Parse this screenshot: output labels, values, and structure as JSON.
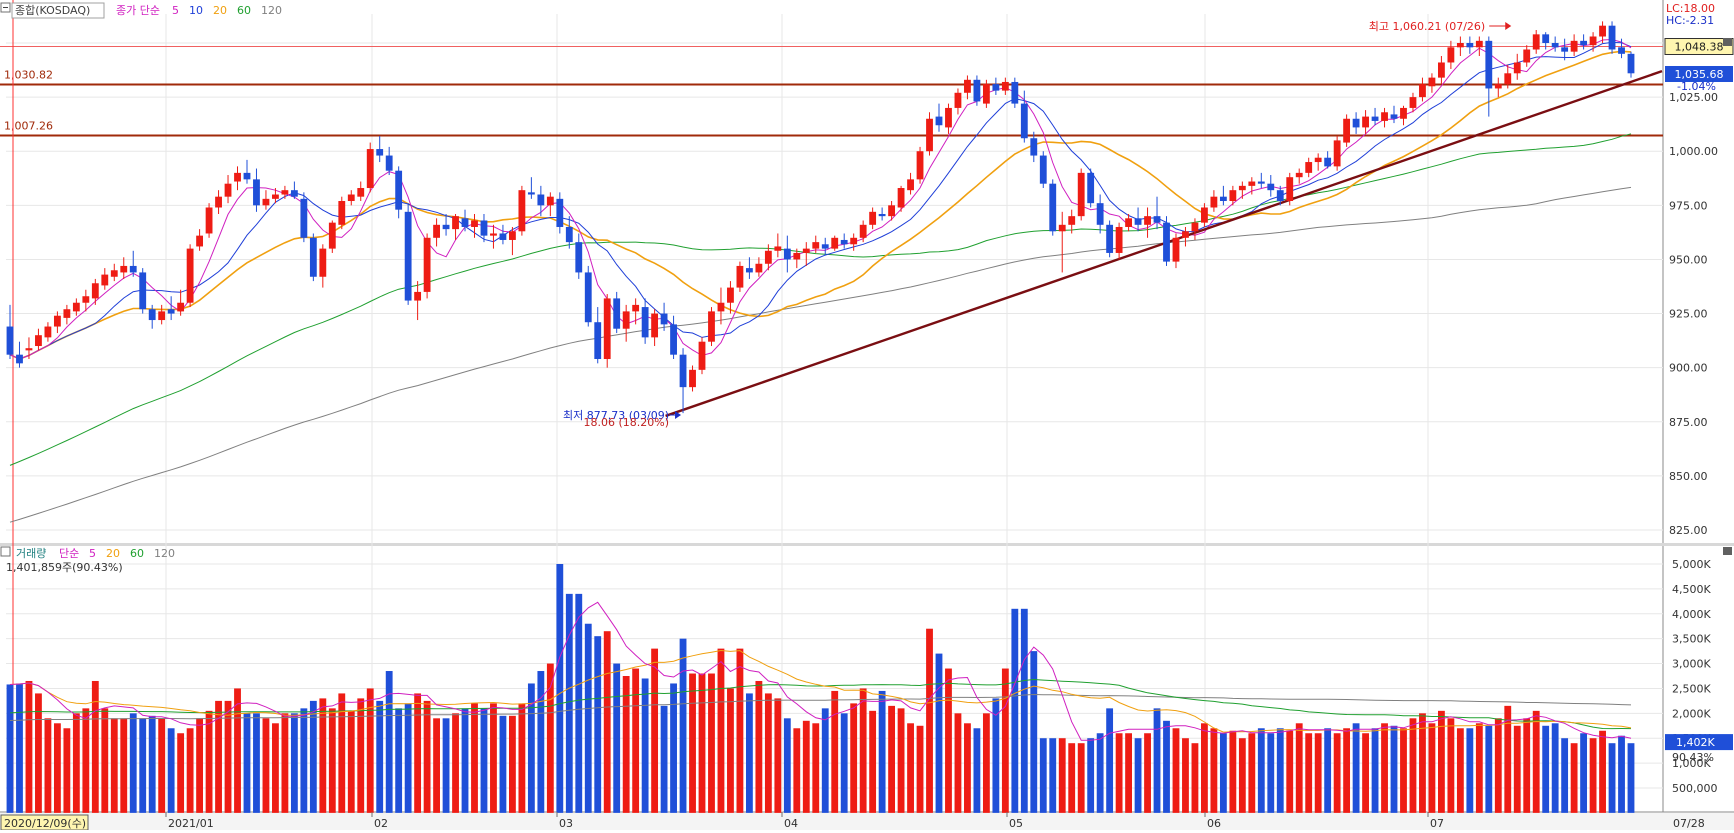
{
  "header": {
    "symbol": "종합(KOSDAQ)",
    "ma_label": "종가 단순",
    "ma_periods": [
      "5",
      "10",
      "20",
      "60",
      "120"
    ],
    "ma_colors": [
      "#d020c0",
      "#1f3fd8",
      "#f0a010",
      "#20a030",
      "#808080"
    ]
  },
  "corner": {
    "lc": "LC:18.00",
    "hc": "HC:-2.31"
  },
  "price_axis": {
    "ticks": [
      "1,050.00",
      "1,025.00",
      "1,000.00",
      "975.00",
      "950.00",
      "925.00",
      "900.00",
      "875.00",
      "850.00",
      "825.00"
    ],
    "current_high_box": "1,048.38",
    "current_price_box": "1,035.68",
    "change_pct": "-1.04%"
  },
  "levels": [
    {
      "label": "1,030.82",
      "value": 1030.82
    },
    {
      "label": "1,007.26",
      "value": 1007.26
    }
  ],
  "annotations": {
    "high": "최고 1,060.21 (07/26)",
    "low": "최저 877.73 (03/09)",
    "low_sub": "18.06 (18.20%)"
  },
  "volume": {
    "title": "거래량",
    "ma_label": "단순",
    "ma_periods": [
      "5",
      "20",
      "60",
      "120"
    ],
    "ma_colors": [
      "#d020c0",
      "#f0a010",
      "#20a030",
      "#808080"
    ],
    "current": "1,401,859주(90.43%)",
    "axis_ticks": [
      "5,000K",
      "4,500K",
      "4,000K",
      "3,500K",
      "3,000K",
      "2,500K",
      "2,000K",
      "1,500K",
      "1,000K",
      "500,000"
    ],
    "current_box": "1,402K",
    "current_pct_box": "90.43%"
  },
  "x_axis": {
    "start_box": "2020/12/09(수)",
    "labels": [
      {
        "text": "2021/01",
        "x": 166
      },
      {
        "text": "02",
        "x": 372
      },
      {
        "text": "03",
        "x": 557
      },
      {
        "text": "04",
        "x": 782
      },
      {
        "text": "05",
        "x": 1007
      },
      {
        "text": "06",
        "x": 1205
      },
      {
        "text": "07",
        "x": 1428
      }
    ],
    "end_box": "07/28"
  },
  "chart_data": {
    "type": "candlestick",
    "period": "2020/12/09 - 2021/07/28",
    "ylim": [
      820,
      1060
    ],
    "volume_ylim": [
      0,
      5200
    ],
    "volume_unit": "K shares",
    "ma_periods": [
      5,
      10,
      20,
      60,
      120
    ],
    "candles": [
      [
        919,
        929,
        904,
        906,
        2580
      ],
      [
        906,
        912,
        900,
        902,
        2600
      ],
      [
        908,
        914,
        904,
        909,
        2650
      ],
      [
        910,
        918,
        908,
        915,
        2400
      ],
      [
        914,
        921,
        912,
        919,
        1900
      ],
      [
        919,
        926,
        916,
        924,
        1800
      ],
      [
        923,
        929,
        920,
        927,
        1700
      ],
      [
        926,
        932,
        924,
        930,
        2000
      ],
      [
        930,
        936,
        926,
        933,
        2100
      ],
      [
        932,
        941,
        929,
        939,
        2650
      ],
      [
        938,
        946,
        936,
        943,
        2100
      ],
      [
        942,
        948,
        940,
        945,
        1900
      ],
      [
        944,
        951,
        941,
        947,
        1900
      ],
      [
        947,
        954,
        942,
        944,
        2000
      ],
      [
        944,
        946,
        925,
        927,
        1900
      ],
      [
        927,
        929,
        918,
        922,
        1950
      ],
      [
        922,
        929,
        920,
        926,
        1900
      ],
      [
        927,
        933,
        922,
        925,
        1700
      ],
      [
        926,
        936,
        924,
        930,
        1600
      ],
      [
        930,
        957,
        928,
        955,
        1700
      ],
      [
        956,
        964,
        954,
        961,
        1900
      ],
      [
        962,
        976,
        960,
        974,
        2050
      ],
      [
        974,
        982,
        971,
        979,
        2250
      ],
      [
        979,
        989,
        976,
        985,
        2250
      ],
      [
        986,
        993,
        982,
        990,
        2500
      ],
      [
        990,
        996,
        985,
        987,
        2000
      ],
      [
        987,
        992,
        972,
        975,
        2000
      ],
      [
        975,
        982,
        973,
        978,
        1900
      ],
      [
        978,
        983,
        976,
        980,
        1800
      ],
      [
        980,
        984,
        978,
        982,
        2000
      ],
      [
        982,
        986,
        978,
        979,
        2000
      ],
      [
        978,
        981,
        958,
        960,
        2100
      ],
      [
        960,
        962,
        940,
        942,
        2250
      ],
      [
        942,
        957,
        937,
        955,
        2300
      ],
      [
        955,
        968,
        953,
        967,
        2100
      ],
      [
        966,
        979,
        964,
        977,
        2400
      ],
      [
        977,
        982,
        975,
        980,
        2050
      ],
      [
        979,
        986,
        977,
        983,
        2300
      ],
      [
        983,
        1004,
        981,
        1001,
        2500
      ],
      [
        1001,
        1007,
        995,
        998,
        2250
      ],
      [
        998,
        1002,
        989,
        991,
        2850
      ],
      [
        991,
        993,
        969,
        973,
        2100
      ],
      [
        972,
        976,
        929,
        931,
        2200
      ],
      [
        931,
        940,
        922,
        935,
        2400
      ],
      [
        935,
        962,
        932,
        960,
        2250
      ],
      [
        960,
        969,
        956,
        966,
        1900
      ],
      [
        966,
        971,
        961,
        964,
        1900
      ],
      [
        964,
        971,
        959,
        970,
        2000
      ],
      [
        969,
        973,
        963,
        965,
        2100
      ],
      [
        965,
        971,
        960,
        968,
        2200
      ],
      [
        968,
        971,
        958,
        961,
        2100
      ],
      [
        961,
        966,
        955,
        962,
        2200
      ],
      [
        962,
        966,
        957,
        959,
        1950
      ],
      [
        959,
        965,
        952,
        963,
        1950
      ],
      [
        963,
        984,
        961,
        982,
        2200
      ],
      [
        981,
        988,
        978,
        980,
        2600
      ],
      [
        980,
        984,
        970,
        975,
        2850
      ],
      [
        975,
        981,
        970,
        979,
        3000
      ],
      [
        978,
        981,
        962,
        965,
        5000
      ],
      [
        965,
        970,
        955,
        958,
        4400
      ],
      [
        958,
        962,
        941,
        944,
        4400
      ],
      [
        944,
        947,
        919,
        921,
        3800
      ],
      [
        921,
        928,
        902,
        904,
        3550
      ],
      [
        904,
        934,
        900,
        932,
        3650
      ],
      [
        932,
        935,
        916,
        918,
        3000
      ],
      [
        918,
        929,
        912,
        926,
        2750
      ],
      [
        926,
        932,
        920,
        929,
        2900
      ],
      [
        928,
        932,
        911,
        914,
        2700
      ],
      [
        914,
        927,
        910,
        925,
        3300
      ],
      [
        925,
        930,
        917,
        920,
        2150
      ],
      [
        920,
        924,
        904,
        906,
        2600
      ],
      [
        906,
        909,
        879,
        891,
        3500
      ],
      [
        891,
        901,
        889,
        899,
        2800
      ],
      [
        899,
        914,
        897,
        912,
        2800
      ],
      [
        912,
        928,
        910,
        926,
        2800
      ],
      [
        926,
        937,
        920,
        930,
        3300
      ],
      [
        930,
        940,
        925,
        937,
        2500
      ],
      [
        937,
        949,
        935,
        947,
        3300
      ],
      [
        946,
        951,
        941,
        944,
        2400
      ],
      [
        944,
        951,
        942,
        948,
        2650
      ],
      [
        948,
        957,
        945,
        954,
        2400
      ],
      [
        954,
        962,
        951,
        956,
        2300
      ],
      [
        955,
        961,
        944,
        950,
        1900
      ],
      [
        950,
        955,
        946,
        953,
        1700
      ],
      [
        953,
        958,
        947,
        955,
        1850
      ],
      [
        955,
        961,
        953,
        958,
        1800
      ],
      [
        957,
        960,
        952,
        955,
        2100
      ],
      [
        955,
        961,
        954,
        960,
        2450
      ],
      [
        959,
        962,
        955,
        957,
        2000
      ],
      [
        957,
        962,
        954,
        960,
        2200
      ],
      [
        960,
        968,
        958,
        966,
        2500
      ],
      [
        966,
        974,
        964,
        972,
        2050
      ],
      [
        971,
        974,
        968,
        970,
        2450
      ],
      [
        970,
        977,
        968,
        975,
        2150
      ],
      [
        974,
        984,
        972,
        983,
        2100
      ],
      [
        982,
        990,
        980,
        987,
        1800
      ],
      [
        987,
        1002,
        985,
        1000,
        1750
      ],
      [
        1000,
        1018,
        998,
        1015,
        3700
      ],
      [
        1016,
        1022,
        1009,
        1012,
        3200
      ],
      [
        1011,
        1022,
        1008,
        1020,
        2900
      ],
      [
        1020,
        1029,
        1017,
        1027,
        2000
      ],
      [
        1027,
        1035,
        1024,
        1033,
        1800
      ],
      [
        1033,
        1035,
        1021,
        1023,
        1700
      ],
      [
        1022,
        1033,
        1020,
        1031,
        2000
      ],
      [
        1031,
        1034,
        1026,
        1028,
        2300
      ],
      [
        1028,
        1034,
        1026,
        1032,
        2900
      ],
      [
        1032,
        1034,
        1020,
        1022,
        4100
      ],
      [
        1022,
        1028,
        1004,
        1006,
        4100
      ],
      [
        1006,
        1009,
        995,
        998,
        3250
      ],
      [
        998,
        1000,
        983,
        985,
        1500
      ],
      [
        985,
        987,
        961,
        963,
        1500
      ],
      [
        963,
        972,
        944,
        966,
        1500
      ],
      [
        966,
        973,
        962,
        970,
        1400
      ],
      [
        970,
        992,
        968,
        990,
        1400
      ],
      [
        990,
        992,
        974,
        976,
        1500
      ],
      [
        976,
        980,
        962,
        966,
        1600
      ],
      [
        966,
        968,
        951,
        953,
        2100
      ],
      [
        953,
        967,
        950,
        965,
        1600
      ],
      [
        965,
        971,
        963,
        969,
        1600
      ],
      [
        969,
        974,
        963,
        966,
        1500
      ],
      [
        966,
        974,
        960,
        970,
        1600
      ],
      [
        970,
        979,
        964,
        967,
        2100
      ],
      [
        967,
        970,
        947,
        949,
        1850
      ],
      [
        949,
        962,
        946,
        960,
        1700
      ],
      [
        960,
        965,
        956,
        963,
        1500
      ],
      [
        963,
        969,
        959,
        967,
        1400
      ],
      [
        967,
        976,
        965,
        974,
        1800
      ],
      [
        974,
        982,
        972,
        979,
        1700
      ],
      [
        979,
        984,
        975,
        977,
        1600
      ],
      [
        977,
        984,
        975,
        982,
        1650
      ],
      [
        982,
        986,
        978,
        984,
        1500
      ],
      [
        984,
        988,
        980,
        986,
        1600
      ],
      [
        986,
        990,
        983,
        985,
        1700
      ],
      [
        985,
        989,
        979,
        982,
        1600
      ],
      [
        982,
        984,
        975,
        977,
        1700
      ],
      [
        977,
        990,
        975,
        988,
        1650
      ],
      [
        988,
        992,
        985,
        990,
        1800
      ],
      [
        990,
        997,
        988,
        995,
        1600
      ],
      [
        995,
        999,
        991,
        997,
        1600
      ],
      [
        997,
        1000,
        992,
        993,
        1700
      ],
      [
        993,
        1007,
        991,
        1005,
        1600
      ],
      [
        1004,
        1017,
        1002,
        1015,
        1700
      ],
      [
        1015,
        1018,
        1008,
        1011,
        1800
      ],
      [
        1011,
        1019,
        1008,
        1016,
        1600
      ],
      [
        1016,
        1020,
        1012,
        1014,
        1700
      ],
      [
        1014,
        1020,
        1011,
        1018,
        1800
      ],
      [
        1017,
        1021,
        1013,
        1015,
        1750
      ],
      [
        1015,
        1021,
        1012,
        1020,
        1700
      ],
      [
        1020,
        1027,
        1018,
        1025,
        1900
      ],
      [
        1025,
        1034,
        1023,
        1031,
        2000
      ],
      [
        1030,
        1036,
        1027,
        1034,
        1800
      ],
      [
        1034,
        1044,
        1031,
        1041,
        2050
      ],
      [
        1041,
        1051,
        1038,
        1048,
        1900
      ],
      [
        1048,
        1053,
        1044,
        1050,
        1700
      ],
      [
        1050,
        1053,
        1045,
        1048,
        1700
      ],
      [
        1048,
        1053,
        1044,
        1051,
        1800
      ],
      [
        1051,
        1053,
        1016,
        1029,
        1750
      ],
      [
        1029,
        1034,
        1025,
        1031,
        1900
      ],
      [
        1031,
        1040,
        1029,
        1036,
        2150
      ],
      [
        1036,
        1045,
        1033,
        1041,
        1750
      ],
      [
        1041,
        1049,
        1039,
        1047,
        1900
      ],
      [
        1047,
        1056,
        1045,
        1054,
        2050
      ],
      [
        1054,
        1055,
        1047,
        1050,
        1750
      ],
      [
        1050,
        1053,
        1046,
        1048,
        1800
      ],
      [
        1048,
        1052,
        1042,
        1046,
        1500
      ],
      [
        1046,
        1054,
        1044,
        1051,
        1400
      ],
      [
        1051,
        1054,
        1047,
        1049,
        1600
      ],
      [
        1049,
        1055,
        1046,
        1053,
        1500
      ],
      [
        1053,
        1060,
        1050,
        1058,
        1650
      ],
      [
        1058,
        1060,
        1045,
        1047,
        1400
      ],
      [
        1048,
        1052,
        1043,
        1045,
        1550
      ],
      [
        1045,
        1046,
        1034,
        1036,
        1400
      ]
    ]
  }
}
